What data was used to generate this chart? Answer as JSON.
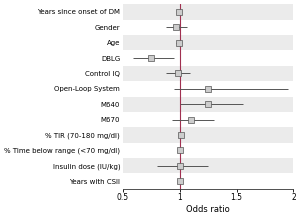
{
  "labels": [
    "Years since onset of DM",
    "Gender",
    "Age",
    "DBLG",
    "Control IQ",
    "Open-Loop System",
    "M640",
    "M670",
    "% TIR (70-180 mg/dl)",
    "% Time below range (<70 mg/dl)",
    "Insulin dose (IU/kg)",
    "Years with CSII"
  ],
  "or": [
    0.99,
    0.97,
    0.99,
    0.75,
    0.98,
    1.25,
    1.25,
    1.1,
    1.01,
    1.0,
    1.0,
    1.0
  ],
  "ci_low": [
    0.98,
    0.88,
    0.97,
    0.59,
    0.88,
    0.95,
    1.0,
    0.93,
    0.99,
    0.99,
    0.8,
    0.98
  ],
  "ci_high": [
    1.0,
    1.06,
    1.01,
    0.95,
    1.09,
    1.95,
    1.56,
    1.3,
    1.03,
    1.01,
    1.25,
    1.02
  ],
  "xlim": [
    0.5,
    2.0
  ],
  "xticks": [
    0.5,
    1.0,
    1.5,
    2.0
  ],
  "xlabel": "Odds ratio",
  "ref_line": 1.0,
  "ref_line_color": "#a03050",
  "marker_facecolor": "#cccccc",
  "marker_edge_color": "#555555",
  "line_color": "#555555",
  "background_color": "#ffffff",
  "stripe_color": "#ebebeb",
  "marker_size": 4.0,
  "fontsize_labels": 5.0,
  "fontsize_xlabel": 6.0,
  "fontsize_ticks": 5.5
}
